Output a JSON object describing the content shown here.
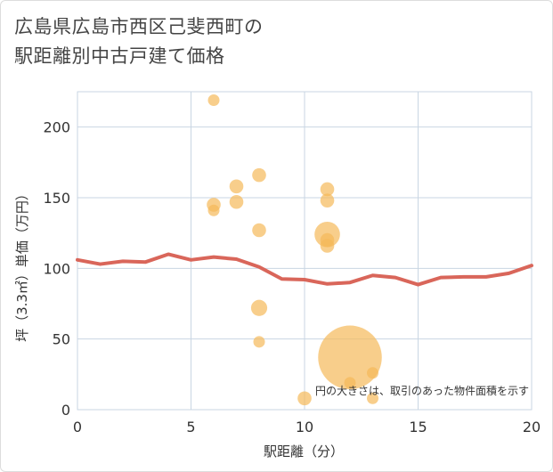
{
  "chart_data": {
    "type": "scatter",
    "title_lines": [
      "広島県広島市西区己斐西町の",
      "駅距離別中古戸建て価格"
    ],
    "xlabel": "駅距離（分）",
    "ylabel": "坪（3.3㎡）単価（万円）",
    "xlim": [
      0,
      20
    ],
    "ylim": [
      0,
      225
    ],
    "x_ticks": [
      0,
      5,
      10,
      15,
      20
    ],
    "y_ticks": [
      0,
      50,
      100,
      150,
      200
    ],
    "note": "円の大きさは、取引のあった物件面積を示す",
    "colors": {
      "bubble": "#f5b95a",
      "trend": "#d9665a",
      "grid": "#c9d6e3"
    },
    "points": [
      {
        "x": 6,
        "y": 219,
        "size": 1
      },
      {
        "x": 6,
        "y": 141,
        "size": 1
      },
      {
        "x": 6,
        "y": 145,
        "size": 1.2
      },
      {
        "x": 7,
        "y": 158,
        "size": 1.2
      },
      {
        "x": 7,
        "y": 147,
        "size": 1.2
      },
      {
        "x": 8,
        "y": 166,
        "size": 1.2
      },
      {
        "x": 8,
        "y": 127,
        "size": 1.2
      },
      {
        "x": 8,
        "y": 72,
        "size": 1.4
      },
      {
        "x": 8,
        "y": 48,
        "size": 1
      },
      {
        "x": 10,
        "y": 8,
        "size": 1.2
      },
      {
        "x": 11,
        "y": 156,
        "size": 1.2
      },
      {
        "x": 11,
        "y": 148,
        "size": 1.2
      },
      {
        "x": 11,
        "y": 124,
        "size": 2.2
      },
      {
        "x": 11,
        "y": 120,
        "size": 1.2
      },
      {
        "x": 11,
        "y": 116,
        "size": 1.2
      },
      {
        "x": 12,
        "y": 37,
        "size": 5.5
      },
      {
        "x": 12,
        "y": 19,
        "size": 1
      },
      {
        "x": 13,
        "y": 26,
        "size": 1
      },
      {
        "x": 13,
        "y": 8,
        "size": 1
      }
    ],
    "trend": {
      "x": [
        0,
        1,
        2,
        3,
        4,
        5,
        6,
        7,
        8,
        9,
        10,
        11,
        12,
        13,
        14,
        15,
        16,
        17,
        18,
        19,
        20
      ],
      "y": [
        106,
        103,
        105,
        104.5,
        110,
        106,
        108,
        106.5,
        101,
        92.5,
        92,
        89,
        90,
        95,
        93.5,
        88.5,
        93.5,
        94,
        94,
        96.5,
        102
      ]
    }
  }
}
